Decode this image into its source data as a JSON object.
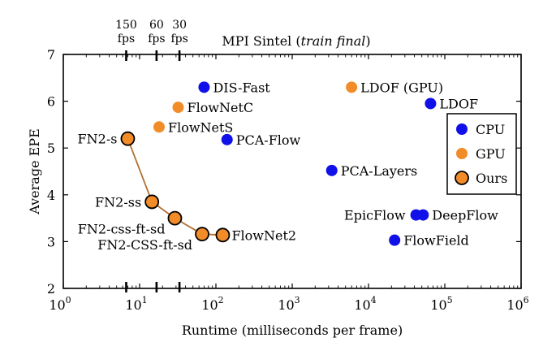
{
  "chart_data": {
    "type": "scatter",
    "title_main": "MPI Sintel",
    "title_italic": "train final",
    "xlabel": "Runtime (milliseconds per frame)",
    "ylabel": "Average EPE",
    "xscale": "log",
    "xlim": [
      1,
      1000000
    ],
    "ylim": [
      2,
      7
    ],
    "yticks": [
      "2",
      "3",
      "4",
      "5",
      "6",
      "7"
    ],
    "xticks": [
      {
        "base": "10",
        "exp": "0"
      },
      {
        "base": "10",
        "exp": "1"
      },
      {
        "base": "10",
        "exp": "2"
      },
      {
        "base": "10",
        "exp": "3"
      },
      {
        "base": "10",
        "exp": "4"
      },
      {
        "base": "10",
        "exp": "5"
      },
      {
        "base": "10",
        "exp": "6"
      }
    ],
    "fps_markers": [
      {
        "top": "150",
        "bottom": "fps",
        "x": 6.67
      },
      {
        "top": "60",
        "bottom": "fps",
        "x": 16.67
      },
      {
        "top": "30",
        "bottom": "fps",
        "x": 33.3
      }
    ],
    "legend": {
      "position": "right",
      "items": [
        {
          "label": "CPU",
          "color": "#1010e8",
          "outlined": false
        },
        {
          "label": "GPU",
          "color": "#f28c28",
          "outlined": false
        },
        {
          "label": "Ours",
          "color": "#f28c28",
          "outlined": true
        }
      ]
    },
    "series": [
      {
        "name": "CPU",
        "color": "#1010e8",
        "points": [
          {
            "label": "DIS-Fast",
            "x": 70,
            "y": 6.3,
            "anchor": "right"
          },
          {
            "label": "PCA-Flow",
            "x": 140,
            "y": 5.18,
            "anchor": "right"
          },
          {
            "label": "LDOF",
            "x": 65000,
            "y": 5.95,
            "anchor": "right"
          },
          {
            "label": "PCA-Layers",
            "x": 3300,
            "y": 4.52,
            "anchor": "right"
          },
          {
            "label": "EpicFlow",
            "x": 42000,
            "y": 3.57,
            "anchor": "left"
          },
          {
            "label": "DeepFlow",
            "x": 52000,
            "y": 3.57,
            "anchor": "right"
          },
          {
            "label": "FlowField",
            "x": 22000,
            "y": 3.03,
            "anchor": "right"
          }
        ]
      },
      {
        "name": "GPU",
        "color": "#f28c28",
        "points": [
          {
            "label": "LDOF (GPU)",
            "x": 6000,
            "y": 6.3,
            "anchor": "right"
          },
          {
            "label": "FlowNetC",
            "x": 32,
            "y": 5.87,
            "anchor": "right"
          },
          {
            "label": "FlowNetS",
            "x": 18,
            "y": 5.45,
            "anchor": "right"
          }
        ]
      },
      {
        "name": "Ours",
        "color": "#f28c28",
        "connected": true,
        "line_color": "#b07030",
        "points": [
          {
            "label": "FN2-s",
            "x": 7,
            "y": 5.2,
            "anchor": "left"
          },
          {
            "label": "FN2-ss",
            "x": 14.5,
            "y": 3.85,
            "anchor": "left"
          },
          {
            "label": "FN2-css-ft-sd",
            "x": 29,
            "y": 3.5,
            "anchor": "leftdown"
          },
          {
            "label": "FN2-CSS-ft-sd",
            "x": 66,
            "y": 3.16,
            "anchor": "leftdown"
          },
          {
            "label": "FlowNet2",
            "x": 123,
            "y": 3.14,
            "anchor": "right"
          }
        ]
      }
    ]
  }
}
